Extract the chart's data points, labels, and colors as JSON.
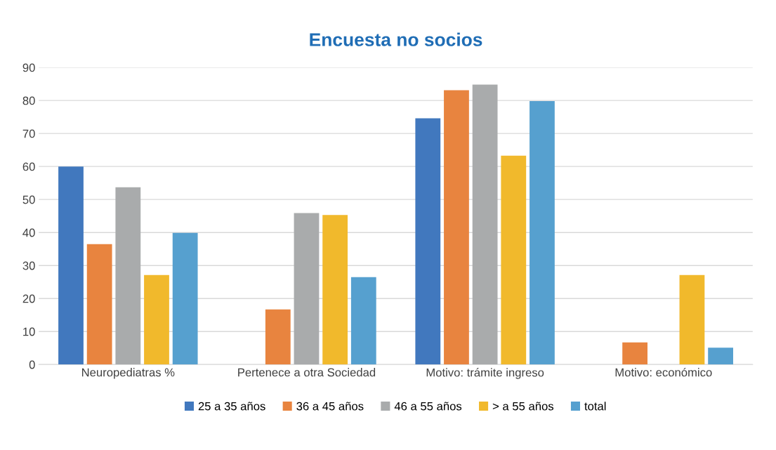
{
  "chart_data": {
    "type": "bar",
    "title": "Encuesta no socios",
    "categories": [
      "Neuropediatras %",
      "Pertenece a otra Sociedad",
      "Motivo: trámite ingreso",
      "Motivo: económico"
    ],
    "series": [
      {
        "name": "25 a 35 años",
        "color": "#4178be",
        "values": [
          60,
          0,
          74.6,
          0
        ]
      },
      {
        "name": "36 a 45 años",
        "color": "#e8843f",
        "values": [
          36.5,
          16.7,
          83.1,
          6.7
        ]
      },
      {
        "name": "46 a 55 años",
        "color": "#a9abac",
        "values": [
          53.7,
          45.9,
          84.8,
          0
        ]
      },
      {
        "name": "> a 55 años",
        "color": "#f1b92c",
        "values": [
          27.1,
          45.3,
          63.3,
          27.1
        ]
      },
      {
        "name": "total",
        "color": "#56a0cf",
        "values": [
          39.9,
          26.5,
          79.8,
          5.1
        ]
      }
    ],
    "ylim": [
      0,
      90
    ],
    "yticks": [
      0,
      10,
      20,
      30,
      40,
      50,
      60,
      70,
      80,
      90
    ],
    "grid": "y",
    "legend": "bottom"
  }
}
